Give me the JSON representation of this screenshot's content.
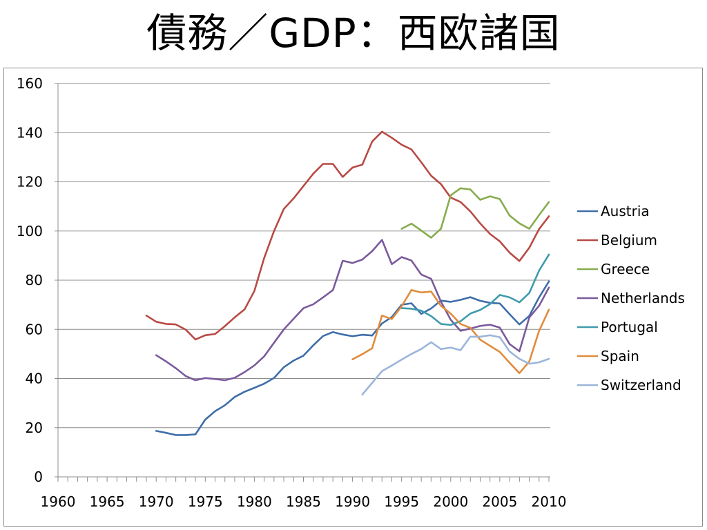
{
  "slide": {
    "title": "債務／GDP：西欧諸国"
  },
  "chart_data": {
    "type": "line",
    "title": "",
    "xlabel": "",
    "ylabel": "",
    "xlim": [
      1960,
      2010
    ],
    "ylim": [
      0,
      160
    ],
    "x_ticks": [
      1960,
      1965,
      1970,
      1975,
      1980,
      1985,
      1990,
      1995,
      2000,
      2005,
      2010
    ],
    "y_ticks": [
      0,
      20,
      40,
      60,
      80,
      100,
      120,
      140,
      160
    ],
    "grid": "horizontal",
    "legend_position": "right",
    "series": [
      {
        "name": "Austria",
        "color": "#3e6ea8",
        "x": [
          1970,
          1971,
          1972,
          1973,
          1974,
          1975,
          1976,
          1977,
          1978,
          1979,
          1980,
          1981,
          1982,
          1983,
          1984,
          1985,
          1986,
          1987,
          1988,
          1989,
          1990,
          1991,
          1992,
          1993,
          1994,
          1995,
          1996,
          1997,
          1998,
          1999,
          2000,
          2001,
          2002,
          2003,
          2004,
          2005,
          2006,
          2007,
          2008,
          2009,
          2010
        ],
        "y": [
          18.7,
          17.9,
          17.0,
          17.0,
          17.3,
          23.3,
          26.7,
          29.1,
          32.5,
          34.6,
          36.2,
          37.9,
          40.2,
          44.6,
          47.3,
          49.3,
          53.5,
          57.3,
          58.9,
          57.9,
          57.2,
          57.8,
          57.5,
          62.4,
          65.0,
          70.0,
          70.6,
          66.3,
          68.5,
          71.7,
          71.2,
          72.0,
          73.1,
          71.6,
          70.8,
          70.5,
          66.2,
          62.0,
          65.5,
          73.0,
          79.5
        ]
      },
      {
        "name": "Belgium",
        "color": "#b84a44",
        "x": [
          1969,
          1970,
          1971,
          1972,
          1973,
          1974,
          1975,
          1976,
          1977,
          1978,
          1979,
          1980,
          1981,
          1982,
          1983,
          1984,
          1985,
          1986,
          1987,
          1988,
          1989,
          1990,
          1991,
          1992,
          1993,
          1994,
          1995,
          1996,
          1997,
          1998,
          1999,
          2000,
          2001,
          2002,
          2003,
          2004,
          2005,
          2006,
          2007,
          2008,
          2009,
          2010
        ],
        "y": [
          65.6,
          63.1,
          62.2,
          62.0,
          59.9,
          55.9,
          57.6,
          58.1,
          61.3,
          64.9,
          68.1,
          75.6,
          89.0,
          99.9,
          109.0,
          113.3,
          118.3,
          123.3,
          127.3,
          127.3,
          122.0,
          125.8,
          127.0,
          136.4,
          140.4,
          137.9,
          135.1,
          133.2,
          128.0,
          122.5,
          119.1,
          113.6,
          111.8,
          108.0,
          103.1,
          98.8,
          95.8,
          91.2,
          87.8,
          93.2,
          100.8,
          106.0
        ]
      },
      {
        "name": "Greece",
        "color": "#87ac4e",
        "x": [
          1995,
          1996,
          1997,
          1998,
          1999,
          2000,
          2001,
          2002,
          2003,
          2004,
          2005,
          2006,
          2007,
          2008,
          2009,
          2010
        ],
        "y": [
          100.9,
          103.0,
          100.2,
          97.3,
          100.9,
          114.5,
          117.4,
          116.9,
          112.7,
          114.1,
          113.0,
          106.3,
          103.1,
          100.9,
          106.5,
          111.8
        ]
      },
      {
        "name": "Netherlands",
        "color": "#7a5a9c",
        "x": [
          1970,
          1971,
          1972,
          1973,
          1974,
          1975,
          1976,
          1977,
          1978,
          1979,
          1980,
          1981,
          1982,
          1983,
          1984,
          1985,
          1986,
          1987,
          1988,
          1989,
          1990,
          1991,
          1992,
          1993,
          1994,
          1995,
          1996,
          1997,
          1998,
          1999,
          2000,
          2001,
          2002,
          2003,
          2004,
          2005,
          2006,
          2007,
          2008,
          2009,
          2010
        ],
        "y": [
          49.5,
          47.0,
          44.2,
          41.0,
          39.3,
          40.2,
          39.8,
          39.3,
          40.3,
          42.6,
          45.3,
          49.0,
          54.5,
          60.0,
          64.3,
          68.6,
          70.2,
          73.0,
          76.0,
          87.9,
          87.0,
          88.4,
          91.8,
          96.4,
          86.5,
          89.4,
          88.0,
          82.3,
          80.6,
          71.3,
          63.9,
          59.4,
          60.3,
          61.4,
          61.9,
          60.7,
          54.0,
          51.1,
          64.8,
          69.6,
          77.0
        ]
      },
      {
        "name": "Portugal",
        "color": "#3f9aad",
        "x": [
          1995,
          1996,
          1997,
          1998,
          1999,
          2000,
          2001,
          2002,
          2003,
          2004,
          2005,
          2006,
          2007,
          2008,
          2009,
          2010
        ],
        "y": [
          68.6,
          68.4,
          67.6,
          65.4,
          62.2,
          61.8,
          63.3,
          66.4,
          67.9,
          70.3,
          74.0,
          73.0,
          71.0,
          74.8,
          83.9,
          90.4
        ]
      },
      {
        "name": "Spain",
        "color": "#df8c3c",
        "x": [
          1990,
          1991,
          1992,
          1993,
          1994,
          1995,
          1996,
          1997,
          1998,
          1999,
          2000,
          2001,
          2002,
          2003,
          2004,
          2005,
          2006,
          2007,
          2008,
          2009,
          2010
        ],
        "y": [
          47.8,
          49.9,
          52.3,
          65.6,
          64.2,
          69.4,
          76.0,
          75.0,
          75.4,
          69.6,
          66.4,
          62.2,
          60.6,
          55.8,
          53.3,
          50.8,
          46.4,
          42.2,
          46.9,
          59.4,
          68.0
        ]
      },
      {
        "name": "Switzerland",
        "color": "#9bb5d8",
        "x": [
          1991,
          1992,
          1993,
          1994,
          1995,
          1996,
          1997,
          1998,
          1999,
          2000,
          2001,
          2002,
          2003,
          2004,
          2005,
          2006,
          2007,
          2008,
          2009,
          2010
        ],
        "y": [
          33.5,
          38.2,
          43.0,
          45.3,
          47.7,
          50.0,
          52.0,
          54.8,
          52.0,
          52.6,
          51.5,
          57.0,
          57.0,
          57.6,
          56.8,
          51.0,
          48.0,
          46.0,
          46.6,
          48.0
        ]
      }
    ]
  }
}
